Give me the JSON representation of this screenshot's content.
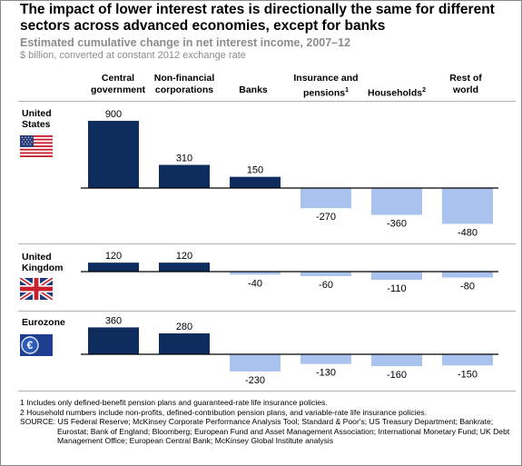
{
  "title": "The impact of lower interest rates is directionally the same for different sectors across advanced economies, except for banks",
  "subtitle": "Estimated cumulative change in net interest income, 2007–12",
  "units": "$ billion, converted at constant 2012 exchange rate",
  "columns": [
    {
      "line1": "Central",
      "line2": "government",
      "sup": ""
    },
    {
      "line1": "Non-financial",
      "line2": "corporations",
      "sup": ""
    },
    {
      "line1": "",
      "line2": "Banks",
      "sup": ""
    },
    {
      "line1": "Insurance and",
      "line2": "pensions",
      "sup": "1"
    },
    {
      "line1": "",
      "line2": "Households",
      "sup": "2"
    },
    {
      "line1": "Rest of",
      "line2": "world",
      "sup": ""
    }
  ],
  "regions": [
    {
      "line1": "United",
      "line2": "States",
      "flag": "us-flag-icon"
    },
    {
      "line1": "United",
      "line2": "Kingdom",
      "flag": "uk-flag-icon"
    },
    {
      "line1": "Eurozone",
      "line2": "",
      "flag": "euro-coin-icon"
    }
  ],
  "colors": {
    "positive": "#0e2c5e",
    "negative": "#a9c3ee",
    "axis": "#000000",
    "title": "#000000",
    "subtitle": "#8c8c8c"
  },
  "chart_data": {
    "type": "bar",
    "categories": [
      "Central government",
      "Non-financial corporations",
      "Banks",
      "Insurance and pensions",
      "Households",
      "Rest of world"
    ],
    "series": [
      {
        "name": "United States",
        "values": [
          900,
          310,
          150,
          -270,
          -360,
          -480
        ]
      },
      {
        "name": "United Kingdom",
        "values": [
          120,
          120,
          -40,
          -60,
          -110,
          -80
        ]
      },
      {
        "name": "Eurozone",
        "values": [
          360,
          280,
          -230,
          -130,
          -160,
          -150
        ]
      }
    ],
    "xlabel": "",
    "ylabel": "$ billion",
    "grid": false
  },
  "footnotes": [
    "1  Includes only defined-benefit pension plans and guaranteed-rate life insurance policies.",
    "2  Household numbers include non-profits, defined-contribution pension plans, and variable-rate life insurance policies."
  ],
  "source": "SOURCE: US Federal Reserve; McKinsey Corporate Performance Analysis Tool; Standard & Poor's; US Treasury Department; Bankrate; Eurostat; Bank of England; Bloomberg; European Fund and Asset Management Association; International Monetary Fund; UK Debt Management Office; European Central Bank; McKinsey Global Institute analysis"
}
